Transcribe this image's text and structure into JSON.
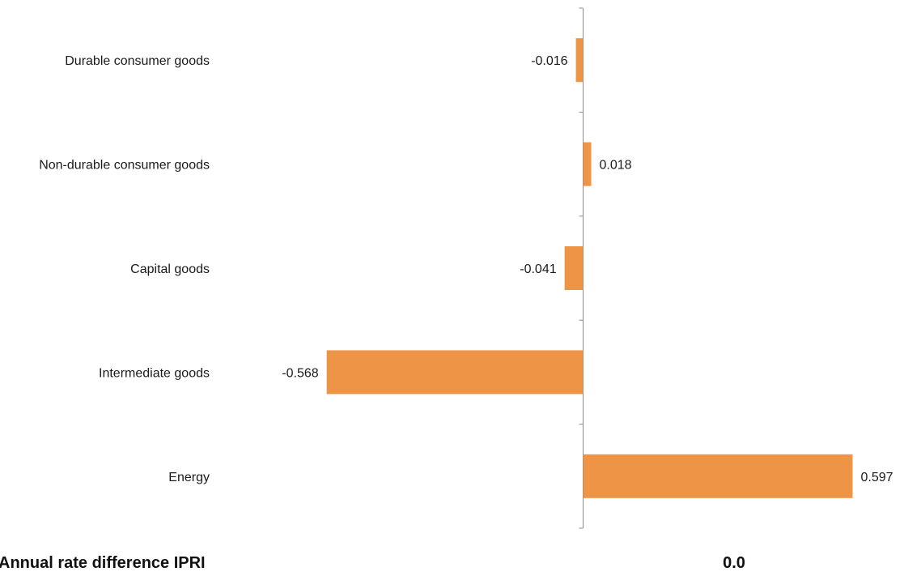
{
  "chart_data": {
    "type": "bar",
    "orientation": "horizontal",
    "categories": [
      "Durable consumer goods",
      "Non-durable consumer goods",
      "Capital goods",
      "Intermediate goods",
      "Energy"
    ],
    "values": [
      -0.016,
      0.018,
      -0.041,
      -0.568,
      0.597
    ],
    "data_labels": [
      "-0.016",
      "0.018",
      "-0.041",
      "-0.568",
      "0.597"
    ],
    "xlim": [
      -0.568,
      0.597
    ],
    "grid": false,
    "legend": "none",
    "bar_color": "#ed9447",
    "axis_color": "#8c8c8c"
  },
  "footer": {
    "title": "Annual rate difference IPRI",
    "total": "0.0"
  }
}
